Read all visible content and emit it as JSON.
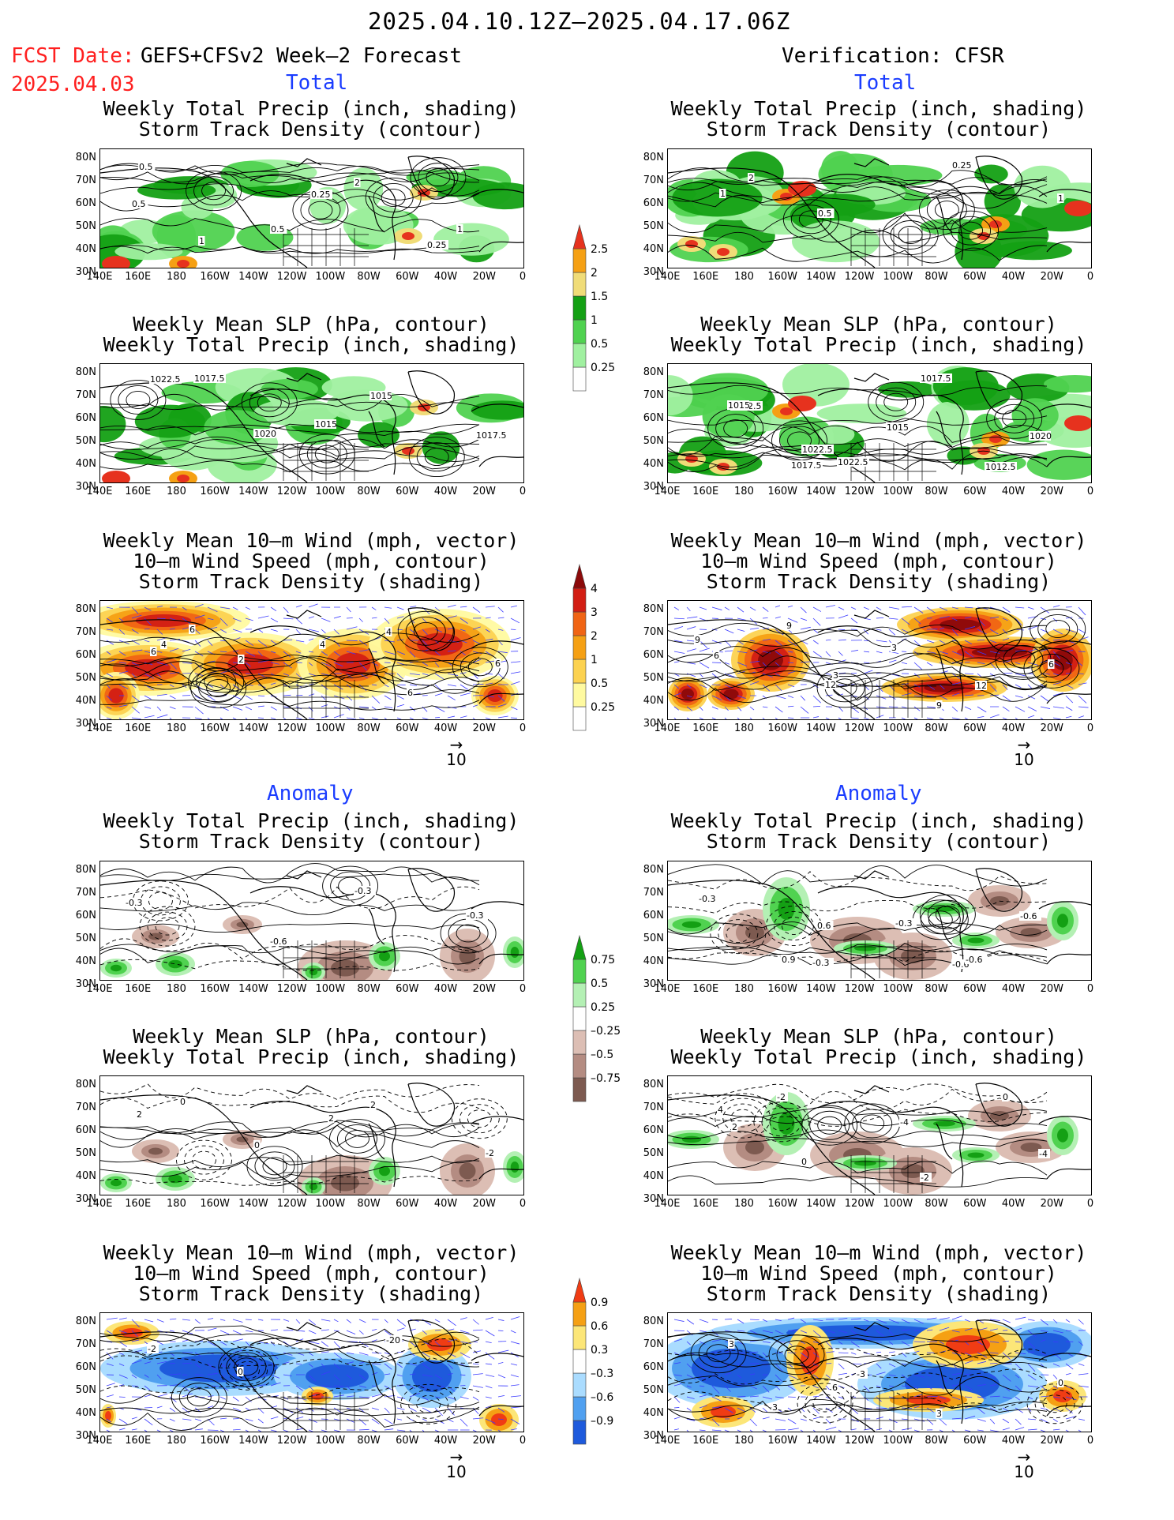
{
  "header": {
    "period": "2025.04.10.12Z–2025.04.17.06Z",
    "fcst_label": "FCST Date:",
    "model": "GEFS+CFSv2 Week–2 Forecast",
    "fcst_date": "2025.04.03",
    "verification": "Verification: CFSR"
  },
  "sections": {
    "total": "Total",
    "anomaly": "Anomaly"
  },
  "panel_titles": {
    "precip": [
      "Weekly Total Precip (inch, shading)",
      "Storm Track Density (contour)"
    ],
    "slp": [
      "Weekly Mean SLP (hPa, contour)",
      "Weekly Total Precip (inch, shading)"
    ],
    "wind": [
      "Weekly Mean 10–m Wind (mph, vector)",
      "10–m Wind Speed (mph, contour)",
      "Storm Track Density (shading)"
    ]
  },
  "axes": {
    "lat": [
      "80N",
      "70N",
      "60N",
      "50N",
      "40N",
      "30N"
    ],
    "lon": [
      "140E",
      "160E",
      "180",
      "160W",
      "140W",
      "120W",
      "100W",
      "80W",
      "60W",
      "40W",
      "20W",
      "0"
    ]
  },
  "vector_ref": "10",
  "colorbars": {
    "precip_total": [
      "2.5",
      "2",
      "1.5",
      "1",
      "0.5",
      "0.25"
    ],
    "storm_total": [
      "4",
      "3",
      "2",
      "1",
      "0.5",
      "0.25"
    ],
    "precip_anom": [
      "0.75",
      "0.5",
      "0.25",
      "–0.25",
      "–0.5",
      "–0.75"
    ],
    "storm_anom": [
      "0.9",
      "0.6",
      "0.3",
      "–0.3",
      "–0.6",
      "–0.9"
    ]
  },
  "colors": {
    "precip": [
      "#a0f0a0",
      "#50d250",
      "#14a014",
      "#f0dc78",
      "#f5a014",
      "#e6321e"
    ],
    "storm": [
      "#fffaa0",
      "#fcd250",
      "#f5a014",
      "#f06414",
      "#d21e14",
      "#8c0a0a"
    ],
    "anom_green": [
      "#b4f0b4",
      "#50d250",
      "#14a014"
    ],
    "anom_brown": [
      "#dcbeb4",
      "#b48c82",
      "#7d5a50"
    ],
    "anom_blue": [
      "#aadcff",
      "#50a0f0",
      "#1e5adc"
    ],
    "anom_red": [
      "#fce678",
      "#f5a014",
      "#f03c14"
    ]
  },
  "contour_labels": {
    "p1_left": [
      "0.5",
      "0.5",
      "2",
      "1",
      "1",
      "0.25",
      "0.25",
      "0.5"
    ],
    "p1_right": [
      "1",
      "0.5",
      "0.25",
      "1",
      "2"
    ],
    "p2_left": [
      "1022.5",
      "1020",
      "1015",
      "1017.5",
      "1017.5",
      "1015"
    ],
    "p2_right": [
      "1012.5",
      "1022.5",
      "1017.5",
      "1020",
      "1017.5",
      "1015",
      "1012.5",
      "1015",
      "1022.5"
    ],
    "p3_left": [
      "4",
      "2",
      "4",
      "6",
      "6",
      "4",
      "6",
      "6"
    ],
    "p3_right": [
      "9",
      "3",
      "9",
      "6",
      "9",
      "3",
      "12",
      "6",
      "12"
    ],
    "p4_left": [
      "-0.3",
      "-0.6",
      "-0.3",
      "-0.3"
    ],
    "p4_right": [
      "0.9",
      "0.6",
      "-0.6",
      "-0.6",
      "0.9",
      "-0.3",
      "-0.6",
      "-0.3",
      "-0.3"
    ],
    "p5_left": [
      "2",
      "0",
      "2",
      "-2",
      "0",
      "2"
    ],
    "p5_right": [
      "4",
      "0",
      "-2",
      "-4",
      "-2",
      "-4",
      "0",
      "2"
    ],
    "p6_left": [
      "-2",
      "0",
      "-20"
    ],
    "p6_right": [
      "3",
      "6",
      "3",
      "0",
      "3",
      "-3"
    ]
  }
}
